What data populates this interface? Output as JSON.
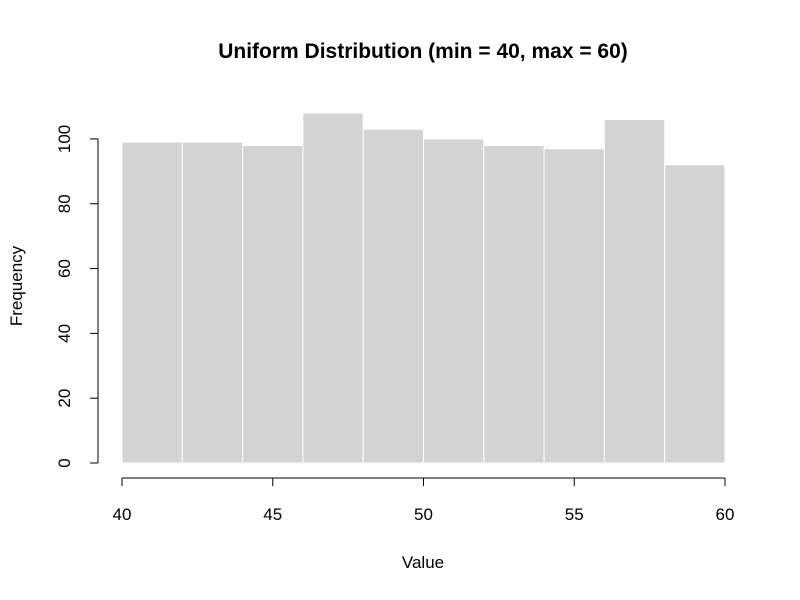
{
  "chart_data": {
    "type": "bar",
    "title": "Uniform Distribution (min = 40, max = 60)",
    "xlabel": "Value",
    "ylabel": "Frequency",
    "bin_edges": [
      40,
      42,
      44,
      46,
      48,
      50,
      52,
      54,
      56,
      58,
      60
    ],
    "values": [
      99,
      99,
      98,
      108,
      103,
      100,
      98,
      97,
      106,
      92
    ],
    "xlim": [
      40,
      60
    ],
    "ylim": [
      0,
      108
    ],
    "x_ticks": [
      40,
      45,
      50,
      55,
      60
    ],
    "y_ticks": [
      0,
      20,
      40,
      60,
      80,
      100
    ],
    "grid": false,
    "bar_color": "#d3d3d3",
    "bar_border_color": "#ffffff"
  }
}
